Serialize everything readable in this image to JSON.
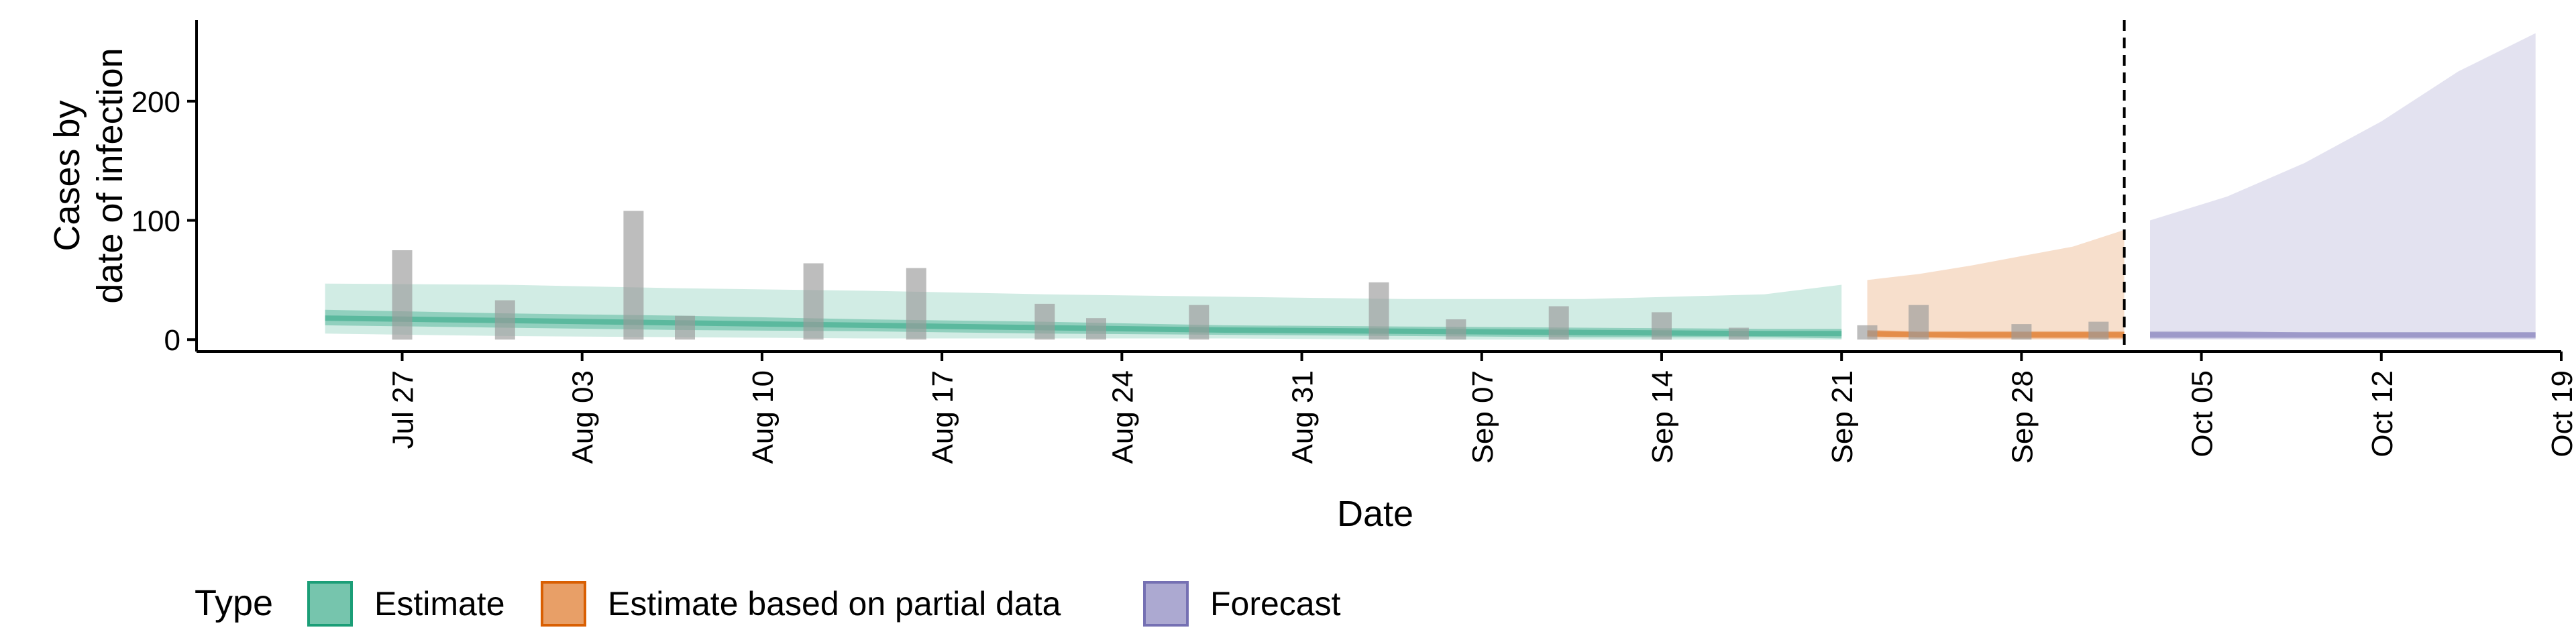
{
  "chart_data": {
    "type": "area",
    "xlabel": "Date",
    "ylabel_lines": [
      "Cases by",
      "date of infection"
    ],
    "xlim": [
      "2020-07-19",
      "2020-10-19"
    ],
    "ylim": [
      -10,
      268
    ],
    "yticks": [
      0,
      100,
      200
    ],
    "xticks": [
      {
        "date": "2020-07-27",
        "label": "Jul 27"
      },
      {
        "date": "2020-08-03",
        "label": "Aug 03"
      },
      {
        "date": "2020-08-10",
        "label": "Aug 10"
      },
      {
        "date": "2020-08-17",
        "label": "Aug 17"
      },
      {
        "date": "2020-08-24",
        "label": "Aug 24"
      },
      {
        "date": "2020-08-31",
        "label": "Aug 31"
      },
      {
        "date": "2020-09-07",
        "label": "Sep 07"
      },
      {
        "date": "2020-09-14",
        "label": "Sep 14"
      },
      {
        "date": "2020-09-21",
        "label": "Sep 21"
      },
      {
        "date": "2020-09-28",
        "label": "Sep 28"
      },
      {
        "date": "2020-10-05",
        "label": "Oct 05"
      },
      {
        "date": "2020-10-12",
        "label": "Oct 12"
      },
      {
        "date": "2020-10-19",
        "label": "Oct 19"
      }
    ],
    "vline_date": "2020-10-02",
    "legend": {
      "title": "Type",
      "position": "bottom",
      "items": [
        {
          "label": "Estimate",
          "color": "#1b9e77"
        },
        {
          "label": "Estimate based on partial data",
          "color": "#d95f02"
        },
        {
          "label": "Forecast",
          "color": "#7570b3"
        }
      ]
    },
    "reported_cases": {
      "color": "#999999",
      "points": [
        {
          "date": "2020-07-27",
          "value": 75
        },
        {
          "date": "2020-07-31",
          "value": 33
        },
        {
          "date": "2020-08-05",
          "value": 108
        },
        {
          "date": "2020-08-07",
          "value": 20
        },
        {
          "date": "2020-08-12",
          "value": 64
        },
        {
          "date": "2020-08-16",
          "value": 60
        },
        {
          "date": "2020-08-21",
          "value": 30
        },
        {
          "date": "2020-08-23",
          "value": 18
        },
        {
          "date": "2020-08-27",
          "value": 29
        },
        {
          "date": "2020-09-03",
          "value": 48
        },
        {
          "date": "2020-09-06",
          "value": 17
        },
        {
          "date": "2020-09-10",
          "value": 28
        },
        {
          "date": "2020-09-14",
          "value": 23
        },
        {
          "date": "2020-09-17",
          "value": 10
        },
        {
          "date": "2020-09-22",
          "value": 12
        },
        {
          "date": "2020-09-24",
          "value": 29
        },
        {
          "date": "2020-09-28",
          "value": 13
        },
        {
          "date": "2020-10-01",
          "value": 15
        }
      ]
    },
    "series": [
      {
        "name": "Estimate",
        "color": "#1b9e77",
        "dates": [
          "2020-07-24",
          "2020-07-31",
          "2020-08-07",
          "2020-08-14",
          "2020-08-21",
          "2020-08-28",
          "2020-09-04",
          "2020-09-11",
          "2020-09-18",
          "2020-09-21"
        ],
        "outer_lower": [
          5,
          3,
          2,
          1,
          1,
          1,
          0,
          0,
          0,
          0
        ],
        "outer_upper": [
          47,
          46,
          43,
          41,
          38,
          36,
          34,
          34,
          38,
          46
        ],
        "inner_lower": [
          12,
          10,
          8,
          7,
          5,
          4,
          3,
          2,
          2,
          1
        ],
        "inner_upper": [
          25,
          22,
          20,
          17,
          15,
          12,
          11,
          10,
          9,
          9
        ],
        "median": [
          18,
          16,
          14,
          12,
          10,
          8,
          7,
          6,
          5,
          5
        ]
      },
      {
        "name": "Estimate based on partial data",
        "color": "#d95f02",
        "dates": [
          "2020-09-22",
          "2020-09-24",
          "2020-09-26",
          "2020-09-28",
          "2020-09-30",
          "2020-10-02"
        ],
        "outer_lower": [
          0,
          0,
          0,
          0,
          0,
          0
        ],
        "outer_upper": [
          50,
          55,
          62,
          70,
          78,
          92
        ],
        "inner_lower": [
          2,
          2,
          1,
          1,
          1,
          1
        ],
        "inner_upper": [
          8,
          7,
          7,
          7,
          7,
          7
        ],
        "median": [
          5,
          4,
          4,
          4,
          4,
          4
        ]
      },
      {
        "name": "Forecast",
        "color": "#7570b3",
        "dates": [
          "2020-10-03",
          "2020-10-06",
          "2020-10-09",
          "2020-10-12",
          "2020-10-15",
          "2020-10-18"
        ],
        "outer_lower": [
          0,
          0,
          0,
          0,
          0,
          0
        ],
        "outer_upper": [
          100,
          120,
          148,
          183,
          225,
          257
        ],
        "inner_lower": [
          1,
          1,
          1,
          1,
          1,
          1
        ],
        "inner_upper": [
          7,
          7,
          6,
          6,
          6,
          6
        ],
        "median": [
          4,
          4,
          4,
          4,
          4,
          4
        ]
      }
    ]
  }
}
